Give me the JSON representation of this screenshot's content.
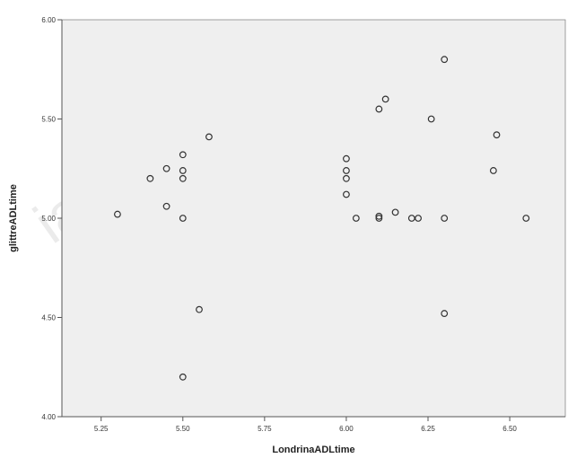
{
  "chart_data": {
    "type": "scatter",
    "title": "",
    "xlabel": "LondrinaADLtime",
    "ylabel": "glittreADLtime",
    "xlim": [
      5.13,
      6.67
    ],
    "ylim": [
      4.0,
      6.0
    ],
    "xticks": [
      5.25,
      5.5,
      5.75,
      6.0,
      6.25,
      6.5
    ],
    "xtick_labels": [
      "5.25",
      "5.50",
      "5.75",
      "6.00",
      "6.25",
      "6.50"
    ],
    "yticks": [
      4.0,
      4.5,
      5.0,
      5.5,
      6.0
    ],
    "ytick_labels": [
      "4.00",
      "4.50",
      "5.00",
      "5.50",
      "6.00"
    ],
    "grid": false,
    "legend": false,
    "plot_background": "#efefef",
    "marker_color": "#333333",
    "points": [
      {
        "x": 5.3,
        "y": 5.02
      },
      {
        "x": 5.4,
        "y": 5.2
      },
      {
        "x": 5.45,
        "y": 5.06
      },
      {
        "x": 5.45,
        "y": 5.25
      },
      {
        "x": 5.5,
        "y": 5.32
      },
      {
        "x": 5.5,
        "y": 5.24
      },
      {
        "x": 5.5,
        "y": 5.2
      },
      {
        "x": 5.5,
        "y": 5.0
      },
      {
        "x": 5.5,
        "y": 4.2
      },
      {
        "x": 5.55,
        "y": 4.54
      },
      {
        "x": 5.58,
        "y": 5.41
      },
      {
        "x": 6.0,
        "y": 5.3
      },
      {
        "x": 6.0,
        "y": 5.24
      },
      {
        "x": 6.0,
        "y": 5.2
      },
      {
        "x": 6.0,
        "y": 5.12
      },
      {
        "x": 6.03,
        "y": 5.0
      },
      {
        "x": 6.1,
        "y": 5.55
      },
      {
        "x": 6.1,
        "y": 5.01
      },
      {
        "x": 6.1,
        "y": 5.0
      },
      {
        "x": 6.12,
        "y": 5.6
      },
      {
        "x": 6.15,
        "y": 5.03
      },
      {
        "x": 6.2,
        "y": 5.0
      },
      {
        "x": 6.22,
        "y": 5.0
      },
      {
        "x": 6.26,
        "y": 5.5
      },
      {
        "x": 6.3,
        "y": 5.8
      },
      {
        "x": 6.3,
        "y": 5.0
      },
      {
        "x": 6.3,
        "y": 4.52
      },
      {
        "x": 6.45,
        "y": 5.24
      },
      {
        "x": 6.46,
        "y": 5.42
      },
      {
        "x": 6.55,
        "y": 5.0
      }
    ]
  },
  "watermark": {
    "text": "ial use o"
  }
}
